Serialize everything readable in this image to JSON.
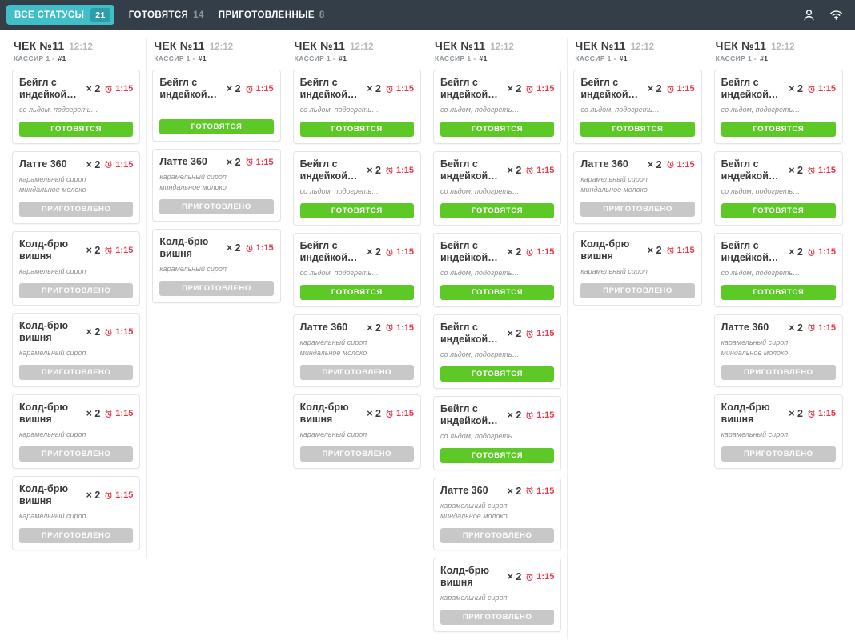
{
  "topbar": {
    "tabs": [
      {
        "label": "ВСЕ СТАТУСЫ",
        "count": "21"
      },
      {
        "label": "ГОТОВЯТСЯ",
        "count": "14"
      },
      {
        "label": "ПРИГОТОВЛЕННЫЕ",
        "count": "8"
      }
    ],
    "icons": [
      "user-icon",
      "wifi-icon"
    ]
  },
  "status_labels": {
    "cooking": "ГОТОВЯТСЯ",
    "done": "ПРИГОТОВЛЕНО"
  },
  "colors": {
    "topbar_bg": "#333e48",
    "active_tab_teal": "#41bfc9",
    "badge_teal": "#2b9ea8",
    "cooking_green": "#5cc926",
    "done_gray": "#c8c8c8",
    "timer_red": "#e8394b"
  },
  "columns": [
    {
      "check_title": "ЧЕК №11",
      "check_time": "12:12",
      "cashier_label": "КАССИР 1 -",
      "cashier_number": "#1",
      "items": [
        {
          "name": "Бейгл с индейкой…",
          "qty": "× 2",
          "timer": "1:15",
          "modifiers": [
            "со льдом, подогреть…"
          ],
          "status": "cooking"
        },
        {
          "name": "Латте 360",
          "qty": "× 2",
          "timer": "1:15",
          "modifiers": [
            "карамельный сироп",
            "миндальное молоко"
          ],
          "status": "done"
        },
        {
          "name": "Колд-брю вишня",
          "qty": "× 2",
          "timer": "1:15",
          "modifiers": [
            "карамельный сироп"
          ],
          "status": "done"
        },
        {
          "name": "Колд-брю вишня",
          "qty": "× 2",
          "timer": "1:15",
          "modifiers": [
            "карамельный сироп"
          ],
          "status": "done"
        },
        {
          "name": "Колд-брю вишня",
          "qty": "× 2",
          "timer": "1:15",
          "modifiers": [
            "карамельный сироп"
          ],
          "status": "done"
        },
        {
          "name": "Колд-брю вишня",
          "qty": "× 2",
          "timer": "1:15",
          "modifiers": [
            "карамельный сироп"
          ],
          "status": "done"
        }
      ]
    },
    {
      "check_title": "ЧЕК №11",
      "check_time": "12:12",
      "cashier_label": "КАССИР 1 -",
      "cashier_number": "#1",
      "items": [
        {
          "name": "Бейгл с индейкой…",
          "qty": "× 2",
          "timer": "1:15",
          "modifiers": [],
          "status": "cooking"
        },
        {
          "name": "Латте 360",
          "qty": "× 2",
          "timer": "1:15",
          "modifiers": [
            "карамельный сироп",
            "миндальное молоко"
          ],
          "status": "done"
        },
        {
          "name": "Колд-брю вишня",
          "qty": "× 2",
          "timer": "1:15",
          "modifiers": [
            "карамельный сироп"
          ],
          "status": "done"
        }
      ]
    },
    {
      "check_title": "ЧЕК №11",
      "check_time": "12:12",
      "cashier_label": "КАССИР 1 -",
      "cashier_number": "#1",
      "items": [
        {
          "name": "Бейгл с индейкой…",
          "qty": "× 2",
          "timer": "1:15",
          "modifiers": [
            "со льдом, подогреть…"
          ],
          "status": "cooking"
        },
        {
          "name": "Бейгл с индейкой…",
          "qty": "× 2",
          "timer": "1:15",
          "modifiers": [
            "со льдом, подогреть…"
          ],
          "status": "cooking"
        },
        {
          "name": "Бейгл с индейкой…",
          "qty": "× 2",
          "timer": "1:15",
          "modifiers": [
            "со льдом, подогреть…"
          ],
          "status": "cooking"
        },
        {
          "name": "Латте 360",
          "qty": "× 2",
          "timer": "1:15",
          "modifiers": [
            "карамельный сироп",
            "миндальное молоко"
          ],
          "status": "done"
        },
        {
          "name": "Колд-брю вишня",
          "qty": "× 2",
          "timer": "1:15",
          "modifiers": [
            "карамельный сироп"
          ],
          "status": "done"
        }
      ]
    },
    {
      "check_title": "ЧЕК №11",
      "check_time": "12:12",
      "cashier_label": "КАССИР 1 -",
      "cashier_number": "#1",
      "items": [
        {
          "name": "Бейгл с индейкой…",
          "qty": "× 2",
          "timer": "1:15",
          "modifiers": [
            "со льдом, подогреть…"
          ],
          "status": "cooking"
        },
        {
          "name": "Бейгл с индейкой…",
          "qty": "× 2",
          "timer": "1:15",
          "modifiers": [
            "со льдом, подогреть…"
          ],
          "status": "cooking"
        },
        {
          "name": "Бейгл с индейкой…",
          "qty": "× 2",
          "timer": "1:15",
          "modifiers": [
            "со льдом, подогреть…"
          ],
          "status": "cooking"
        },
        {
          "name": "Бейгл с индейкой…",
          "qty": "× 2",
          "timer": "1:15",
          "modifiers": [
            "со льдом, подогреть…"
          ],
          "status": "cooking"
        },
        {
          "name": "Бейгл с индейкой…",
          "qty": "× 2",
          "timer": "1:15",
          "modifiers": [
            "со льдом, подогреть…"
          ],
          "status": "cooking"
        },
        {
          "name": "Латте 360",
          "qty": "× 2",
          "timer": "1:15",
          "modifiers": [
            "карамельный сироп",
            "миндальное молоко"
          ],
          "status": "done"
        },
        {
          "name": "Колд-брю вишня",
          "qty": "× 2",
          "timer": "1:15",
          "modifiers": [
            "карамельный сироп"
          ],
          "status": "done"
        }
      ]
    },
    {
      "check_title": "ЧЕК №11",
      "check_time": "12:12",
      "cashier_label": "КАССИР 1 -",
      "cashier_number": "#1",
      "items": [
        {
          "name": "Бейгл с индейкой…",
          "qty": "× 2",
          "timer": "1:15",
          "modifiers": [
            "со льдом, подогреть…"
          ],
          "status": "cooking"
        },
        {
          "name": "Латте 360",
          "qty": "× 2",
          "timer": "1:15",
          "modifiers": [
            "карамельный сироп",
            "миндальное молоко"
          ],
          "status": "done"
        },
        {
          "name": "Колд-брю вишня",
          "qty": "× 2",
          "timer": "1:15",
          "modifiers": [
            "карамельный сироп"
          ],
          "status": "done"
        }
      ]
    },
    {
      "check_title": "ЧЕК №11",
      "check_time": "12:12",
      "cashier_label": "КАССИР 1 -",
      "cashier_number": "#1",
      "items": [
        {
          "name": "Бейгл с индейкой…",
          "qty": "× 2",
          "timer": "1:15",
          "modifiers": [
            "со льдом, подогреть…"
          ],
          "status": "cooking"
        },
        {
          "name": "Бейгл с индейкой…",
          "qty": "× 2",
          "timer": "1:15",
          "modifiers": [
            "со льдом, подогреть…"
          ],
          "status": "cooking"
        },
        {
          "name": "Бейгл с индейкой…",
          "qty": "× 2",
          "timer": "1:15",
          "modifiers": [
            "со льдом, подогреть…"
          ],
          "status": "cooking"
        },
        {
          "name": "Латте 360",
          "qty": "× 2",
          "timer": "1:15",
          "modifiers": [
            "карамельный сироп",
            "миндальное молоко"
          ],
          "status": "done"
        },
        {
          "name": "Колд-брю вишня",
          "qty": "× 2",
          "timer": "1:15",
          "modifiers": [
            "карамельный сироп"
          ],
          "status": "done"
        }
      ]
    }
  ]
}
